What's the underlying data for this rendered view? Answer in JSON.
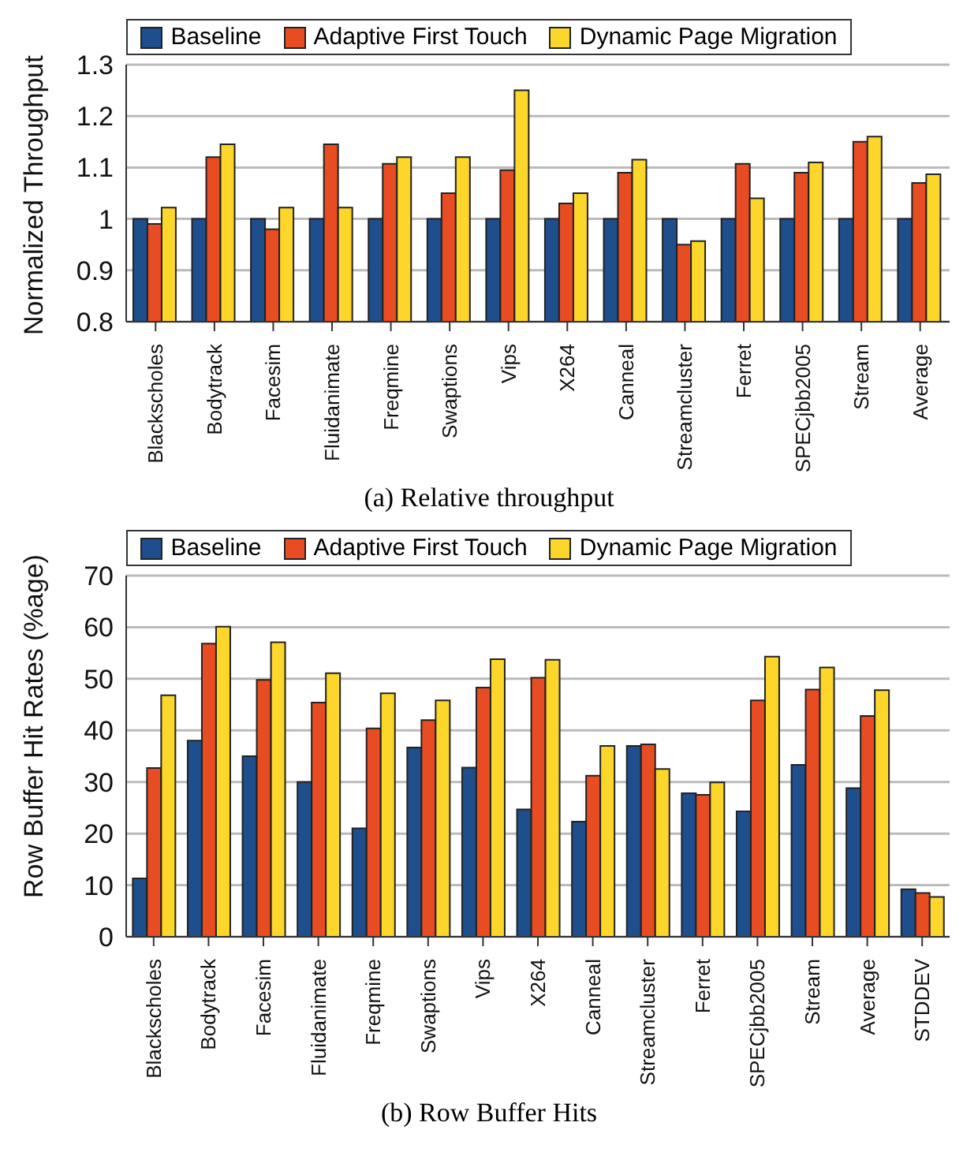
{
  "chart_data": [
    {
      "type": "bar",
      "title": "(a) Relative throughput",
      "ylabel": "Normalized Throughput",
      "categories": [
        "Blackscholes",
        "Bodytrack",
        "Facesim",
        "Fluidanimate",
        "Freqmine",
        "Swaptions",
        "Vips",
        "X264",
        "Canneal",
        "Streamcluster",
        "Ferret",
        "SPECjbb2005",
        "Stream",
        "Average"
      ],
      "series": [
        {
          "name": "Baseline",
          "color": "#1f4e8c",
          "values": [
            1,
            1,
            1,
            1,
            1,
            1,
            1,
            1,
            1,
            1,
            1,
            1,
            1,
            1
          ]
        },
        {
          "name": "Adaptive First Touch",
          "color": "#e84c22",
          "values": [
            0.99,
            1.12,
            0.98,
            1.145,
            1.107,
            1.05,
            1.095,
            1.03,
            1.09,
            0.95,
            1.107,
            1.09,
            1.15,
            1.07
          ]
        },
        {
          "name": "Dynamic Page Migration",
          "color": "#fcd62a",
          "values": [
            1.022,
            1.145,
            1.022,
            1.022,
            1.12,
            1.12,
            1.25,
            1.05,
            1.115,
            0.957,
            1.04,
            1.11,
            1.16,
            1.087
          ]
        }
      ],
      "ylim": [
        0.8,
        1.3
      ],
      "yticks": [
        0.8,
        0.9,
        1,
        1.1,
        1.2,
        1.3
      ],
      "grid": "y",
      "legend": "top"
    },
    {
      "type": "bar",
      "title": "(b) Row Buffer Hits",
      "ylabel": "Row Buffer Hit Rates (%age)",
      "categories": [
        "Blackscholes",
        "Bodytrack",
        "Facesim",
        "Fluidanimate",
        "Freqmine",
        "Swaptions",
        "Vips",
        "X264",
        "Canneal",
        "Streamcluster",
        "Ferret",
        "SPECjbb2005",
        "Stream",
        "Average",
        "STDDEV"
      ],
      "series": [
        {
          "name": "Baseline",
          "color": "#1f4e8c",
          "values": [
            11.3,
            38,
            35,
            30,
            21,
            36.7,
            32.8,
            24.7,
            22.3,
            37,
            27.8,
            24.3,
            33.3,
            28.8,
            9.2
          ]
        },
        {
          "name": "Adaptive First Touch",
          "color": "#e84c22",
          "values": [
            32.7,
            56.8,
            49.8,
            45.4,
            40.4,
            42,
            48.3,
            50.2,
            31.2,
            37.3,
            27.5,
            45.8,
            47.9,
            42.8,
            8.5
          ]
        },
        {
          "name": "Dynamic Page Migration",
          "color": "#fcd62a",
          "values": [
            46.8,
            60.1,
            57.1,
            51.1,
            47.2,
            45.8,
            53.8,
            53.7,
            37,
            32.5,
            29.9,
            54.3,
            52.2,
            47.8,
            7.7
          ]
        }
      ],
      "ylim": [
        0,
        70
      ],
      "yticks": [
        0,
        10,
        20,
        30,
        40,
        50,
        60,
        70
      ],
      "grid": "y",
      "legend": "top"
    }
  ]
}
